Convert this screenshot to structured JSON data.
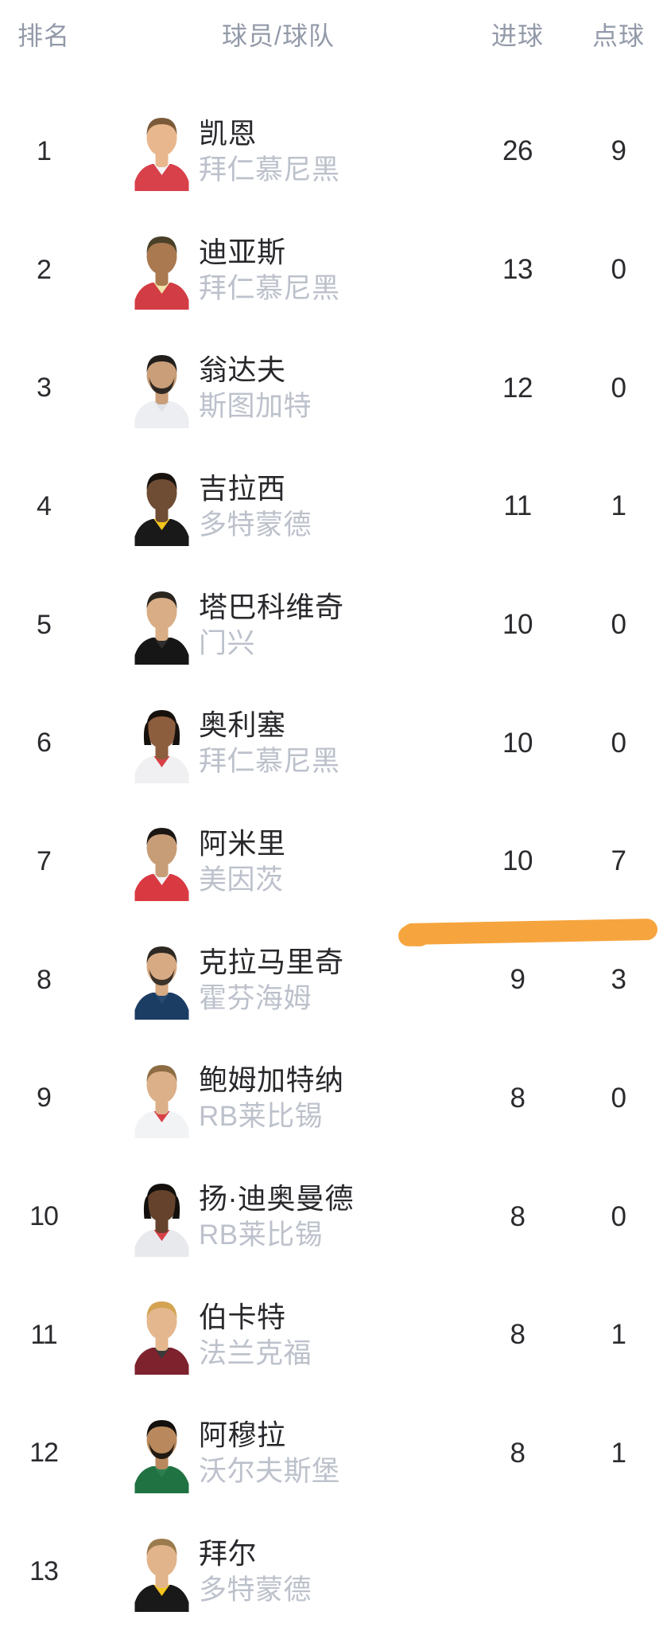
{
  "table": {
    "headers": {
      "rank": "排名",
      "player": "球员/球队",
      "goals": "进球",
      "penalties": "点球"
    },
    "rows": [
      {
        "rank": "1",
        "name": "凯恩",
        "team": "拜仁慕尼黑",
        "goals": "26",
        "penalties": "9",
        "avatar": {
          "skin": "#e9b78e",
          "hair": "#7b5a39",
          "jersey": "#d8404a",
          "accent": "#f4f4f6",
          "beard": false,
          "long": false
        }
      },
      {
        "rank": "2",
        "name": "迪亚斯",
        "team": "拜仁慕尼黑",
        "goals": "13",
        "penalties": "0",
        "avatar": {
          "skin": "#aa7950",
          "hair": "#4a4028",
          "jersey": "#d23c44",
          "accent": "#f0e3ac",
          "beard": false,
          "long": false
        }
      },
      {
        "rank": "3",
        "name": "翁达夫",
        "team": "斯图加特",
        "goals": "12",
        "penalties": "0",
        "avatar": {
          "skin": "#c99e78",
          "hair": "#221e1b",
          "jersey": "#eceef2",
          "accent": "#dfe2e8",
          "beard": true,
          "long": false
        }
      },
      {
        "rank": "4",
        "name": "吉拉西",
        "team": "多特蒙德",
        "goals": "11",
        "penalties": "1",
        "avatar": {
          "skin": "#6f4c34",
          "hair": "#17120e",
          "jersey": "#191919",
          "accent": "#f3c51d",
          "beard": false,
          "long": false
        }
      },
      {
        "rank": "5",
        "name": "塔巴科维奇",
        "team": "门兴",
        "goals": "10",
        "penalties": "0",
        "avatar": {
          "skin": "#d9ad85",
          "hair": "#2b251f",
          "jersey": "#161616",
          "accent": "#2e2e2e",
          "beard": false,
          "long": false
        }
      },
      {
        "rank": "6",
        "name": "奥利塞",
        "team": "拜仁慕尼黑",
        "goals": "10",
        "penalties": "0",
        "avatar": {
          "skin": "#8c5e3e",
          "hair": "#17110d",
          "jersey": "#f0f0f2",
          "accent": "#d84048",
          "beard": false,
          "long": true
        }
      },
      {
        "rank": "7",
        "name": "阿米里",
        "team": "美因茨",
        "goals": "10",
        "penalties": "7",
        "avatar": {
          "skin": "#c79d77",
          "hair": "#1b1612",
          "jersey": "#d93a42",
          "accent": "#f2f2f4",
          "beard": false,
          "long": false
        }
      },
      {
        "rank": "8",
        "name": "克拉马里奇",
        "team": "霍芬海姆",
        "goals": "9",
        "penalties": "3",
        "avatar": {
          "skin": "#d7aa83",
          "hair": "#2e2822",
          "jersey": "#1c3d63",
          "accent": "#27496f",
          "beard": true,
          "long": false
        }
      },
      {
        "rank": "9",
        "name": "鲍姆加特纳",
        "team": "RB莱比锡",
        "goals": "8",
        "penalties": "0",
        "avatar": {
          "skin": "#dcb089",
          "hair": "#8d6c44",
          "jersey": "#f2f3f5",
          "accent": "#d84048",
          "beard": false,
          "long": false
        }
      },
      {
        "rank": "10",
        "name": "扬·迪奥曼德",
        "team": "RB莱比锡",
        "goals": "8",
        "penalties": "0",
        "avatar": {
          "skin": "#64422c",
          "hair": "#120f0c",
          "jersey": "#e8e9ed",
          "accent": "#d84048",
          "beard": false,
          "long": true
        }
      },
      {
        "rank": "11",
        "name": "伯卡特",
        "team": "法兰克福",
        "goals": "8",
        "penalties": "1",
        "avatar": {
          "skin": "#e4b78e",
          "hair": "#d3a352",
          "jersey": "#7e222e",
          "accent": "#3a3a3a",
          "beard": false,
          "long": false
        }
      },
      {
        "rank": "12",
        "name": "阿穆拉",
        "team": "沃尔夫斯堡",
        "goals": "8",
        "penalties": "1",
        "avatar": {
          "skin": "#b9895d",
          "hair": "#14100d",
          "jersey": "#217243",
          "accent": "#2b7f4e",
          "beard": true,
          "long": false
        }
      },
      {
        "rank": "13",
        "name": "拜尔",
        "team": "多特蒙德",
        "goals": "",
        "penalties": "",
        "avatar": {
          "skin": "#e2b48b",
          "hair": "#9b7a4c",
          "jersey": "#191919",
          "accent": "#f3c51d",
          "beard": false,
          "long": false
        }
      }
    ],
    "highlight": {
      "type": "marker-underline",
      "below_row_rank": "7",
      "color": "#F6A53E"
    }
  }
}
